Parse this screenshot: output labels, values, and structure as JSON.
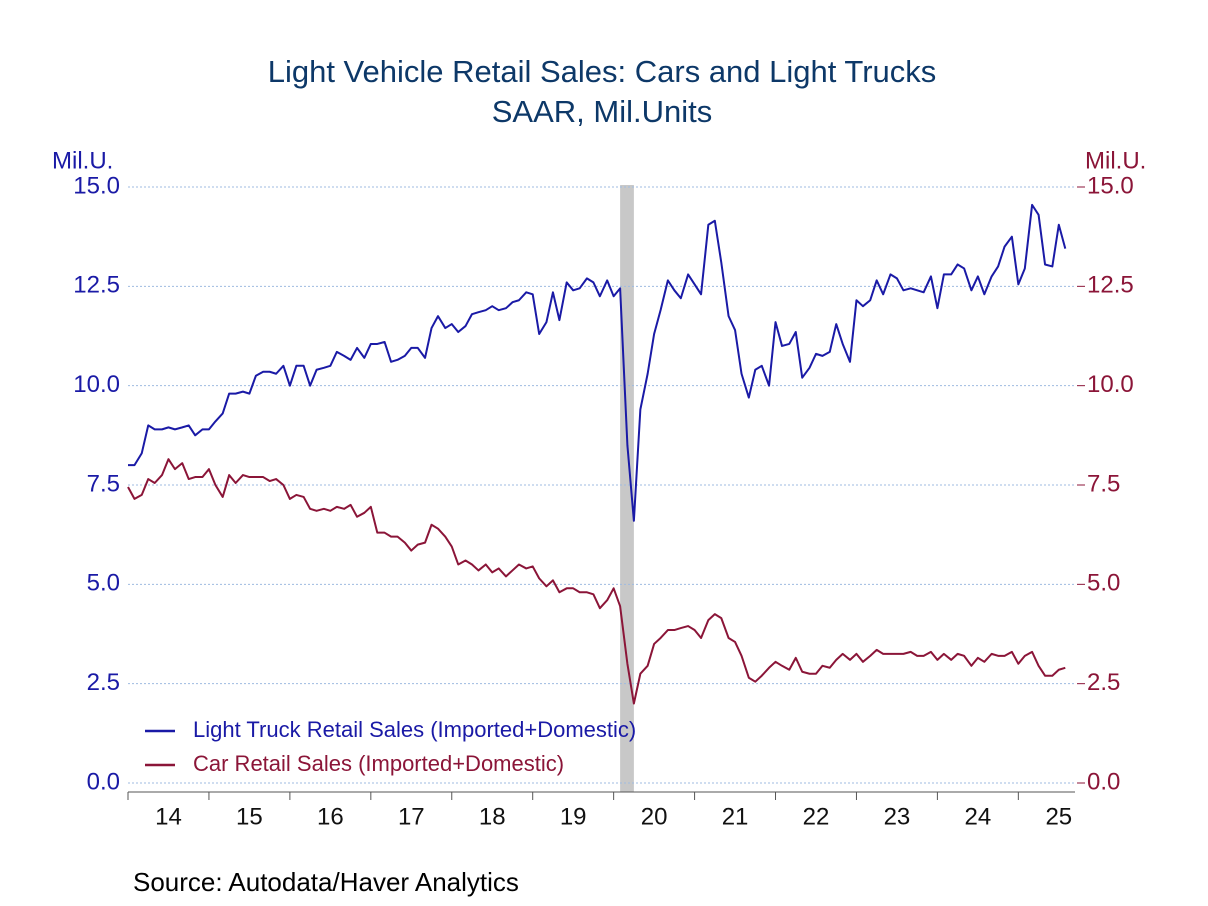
{
  "chart_data": {
    "type": "line",
    "title": "Light Vehicle Retail Sales: Cars and Light Trucks",
    "subtitle": "SAAR, Mil.Units",
    "y_label": "Mil.U.",
    "y2_label": "Mil.U.",
    "source": "Source:  Autodata/Haver Analytics",
    "x": [
      14,
      14.08,
      14.17,
      14.25,
      14.33,
      14.42,
      14.5,
      14.58,
      14.67,
      14.75,
      14.83,
      14.92,
      15,
      15.08,
      15.17,
      15.25,
      15.33,
      15.42,
      15.5,
      15.58,
      15.67,
      15.75,
      15.83,
      15.92,
      16,
      16.08,
      16.17,
      16.25,
      16.33,
      16.42,
      16.5,
      16.58,
      16.67,
      16.75,
      16.83,
      16.92,
      17,
      17.08,
      17.17,
      17.25,
      17.33,
      17.42,
      17.5,
      17.58,
      17.67,
      17.75,
      17.83,
      17.92,
      18,
      18.08,
      18.17,
      18.25,
      18.33,
      18.42,
      18.5,
      18.58,
      18.67,
      18.75,
      18.83,
      18.92,
      19,
      19.08,
      19.17,
      19.25,
      19.33,
      19.42,
      19.5,
      19.58,
      19.67,
      19.75,
      19.83,
      19.92,
      20,
      20.08,
      20.17,
      20.25,
      20.33,
      20.42,
      20.5,
      20.58,
      20.67,
      20.75,
      20.83,
      20.92,
      21,
      21.08,
      21.17,
      21.25,
      21.33,
      21.42,
      21.5,
      21.58,
      21.67,
      21.75,
      21.83,
      21.92,
      22,
      22.08,
      22.17,
      22.25,
      22.33,
      22.42,
      22.5,
      22.58,
      22.67,
      22.75,
      22.83,
      22.92,
      23,
      23.08,
      23.17,
      23.25,
      23.33,
      23.42,
      23.5,
      23.58,
      23.67,
      23.75,
      23.83,
      23.92,
      24,
      24.08,
      24.17,
      24.25,
      24.33,
      24.42,
      24.5,
      24.58,
      24.67,
      24.75,
      24.83,
      24.92,
      25,
      25.08,
      25.17,
      25.25,
      25.33,
      25.42,
      25.5,
      25.58
    ],
    "series": [
      {
        "name": "Light Truck Retail Sales (Imported+Domestic)",
        "color": "#1a1aa6",
        "axis": "y",
        "values": [
          8.0,
          8.0,
          8.3,
          9.0,
          8.9,
          8.9,
          8.95,
          8.9,
          8.95,
          9.0,
          8.75,
          8.9,
          8.9,
          9.1,
          9.3,
          9.8,
          9.8,
          9.85,
          9.8,
          10.25,
          10.35,
          10.35,
          10.3,
          10.5,
          10.0,
          10.5,
          10.5,
          10.0,
          10.4,
          10.45,
          10.5,
          10.85,
          10.75,
          10.65,
          10.95,
          10.7,
          11.05,
          11.05,
          11.1,
          10.6,
          10.65,
          10.75,
          10.95,
          10.95,
          10.7,
          11.45,
          11.75,
          11.45,
          11.55,
          11.35,
          11.5,
          11.8,
          11.85,
          11.9,
          12.0,
          11.9,
          11.95,
          12.1,
          12.15,
          12.35,
          12.3,
          11.3,
          11.6,
          12.35,
          11.65,
          12.6,
          12.4,
          12.45,
          12.7,
          12.6,
          12.25,
          12.65,
          12.25,
          12.45,
          8.5,
          6.6,
          9.4,
          10.3,
          11.3,
          11.9,
          12.65,
          12.4,
          12.2,
          12.8,
          12.55,
          12.3,
          14.05,
          14.15,
          13.1,
          11.75,
          11.4,
          10.3,
          9.7,
          10.4,
          10.5,
          10.0,
          11.6,
          11.0,
          11.05,
          11.35,
          10.2,
          10.45,
          10.8,
          10.75,
          10.85,
          11.55,
          11.05,
          10.6,
          12.15,
          12.0,
          12.15,
          12.65,
          12.3,
          12.8,
          12.7,
          12.4,
          12.45,
          12.4,
          12.35,
          12.75,
          11.95,
          12.8,
          12.8,
          13.05,
          12.95,
          12.4,
          12.75,
          12.3,
          12.75,
          13.0,
          13.5,
          13.75,
          12.55,
          12.95,
          14.55,
          14.3,
          13.05,
          13.0,
          14.05,
          13.45
        ]
      },
      {
        "name": "Car Retail Sales (Imported+Domestic)",
        "color": "#8b1538",
        "axis": "y2",
        "values": [
          7.45,
          7.15,
          7.25,
          7.65,
          7.55,
          7.75,
          8.15,
          7.9,
          8.05,
          7.65,
          7.7,
          7.7,
          7.9,
          7.5,
          7.2,
          7.75,
          7.55,
          7.75,
          7.7,
          7.7,
          7.7,
          7.6,
          7.65,
          7.5,
          7.15,
          7.25,
          7.2,
          6.9,
          6.85,
          6.9,
          6.85,
          6.95,
          6.9,
          7.0,
          6.7,
          6.8,
          6.95,
          6.3,
          6.3,
          6.2,
          6.2,
          6.05,
          5.85,
          6.0,
          6.05,
          6.5,
          6.4,
          6.2,
          5.95,
          5.5,
          5.6,
          5.5,
          5.35,
          5.5,
          5.3,
          5.4,
          5.2,
          5.35,
          5.5,
          5.4,
          5.45,
          5.15,
          4.95,
          5.1,
          4.8,
          4.9,
          4.9,
          4.8,
          4.8,
          4.75,
          4.4,
          4.6,
          4.9,
          4.45,
          3.0,
          2.0,
          2.75,
          2.95,
          3.5,
          3.65,
          3.85,
          3.85,
          3.9,
          3.95,
          3.85,
          3.65,
          4.1,
          4.25,
          4.15,
          3.65,
          3.55,
          3.2,
          2.65,
          2.55,
          2.7,
          2.9,
          3.05,
          2.95,
          2.85,
          3.15,
          2.8,
          2.75,
          2.75,
          2.95,
          2.9,
          3.1,
          3.25,
          3.1,
          3.25,
          3.05,
          3.2,
          3.35,
          3.25,
          3.25,
          3.25,
          3.25,
          3.3,
          3.2,
          3.2,
          3.3,
          3.1,
          3.25,
          3.1,
          3.25,
          3.2,
          2.95,
          3.15,
          3.05,
          3.25,
          3.2,
          3.2,
          3.3,
          3.0,
          3.2,
          3.3,
          2.95,
          2.7,
          2.7,
          2.85,
          2.9
        ]
      }
    ],
    "shaded_regions": [
      [
        20.08,
        20.25
      ]
    ],
    "xlim": [
      14,
      25.7
    ],
    "xticks": [
      {
        "value": 14,
        "label": "14"
      },
      {
        "value": 15,
        "label": "15"
      },
      {
        "value": 16,
        "label": "16"
      },
      {
        "value": 17,
        "label": "17"
      },
      {
        "value": 18,
        "label": "18"
      },
      {
        "value": 19,
        "label": "19"
      },
      {
        "value": 20,
        "label": "20"
      },
      {
        "value": 21,
        "label": "21"
      },
      {
        "value": 22,
        "label": "22"
      },
      {
        "value": 23,
        "label": "23"
      },
      {
        "value": 24,
        "label": "24"
      },
      {
        "value": 25,
        "label": "25"
      }
    ],
    "ylim": [
      0,
      15
    ],
    "yticks": [
      {
        "value": 0,
        "label": "0.0"
      },
      {
        "value": 2.5,
        "label": "2.5"
      },
      {
        "value": 5,
        "label": "5.0"
      },
      {
        "value": 7.5,
        "label": "7.5"
      },
      {
        "value": 10,
        "label": "10.0"
      },
      {
        "value": 12.5,
        "label": "12.5"
      },
      {
        "value": 15,
        "label": "15.0"
      }
    ],
    "y2lim": [
      0,
      15
    ],
    "y2ticks": [
      {
        "value": 0,
        "label": "0.0"
      },
      {
        "value": 2.5,
        "label": "2.5"
      },
      {
        "value": 5,
        "label": "5.0"
      },
      {
        "value": 7.5,
        "label": "7.5"
      },
      {
        "value": 10,
        "label": "10.0"
      },
      {
        "value": 12.5,
        "label": "12.5"
      },
      {
        "value": 15,
        "label": "15.0"
      }
    ],
    "grid": true,
    "legend": "lower-left"
  }
}
